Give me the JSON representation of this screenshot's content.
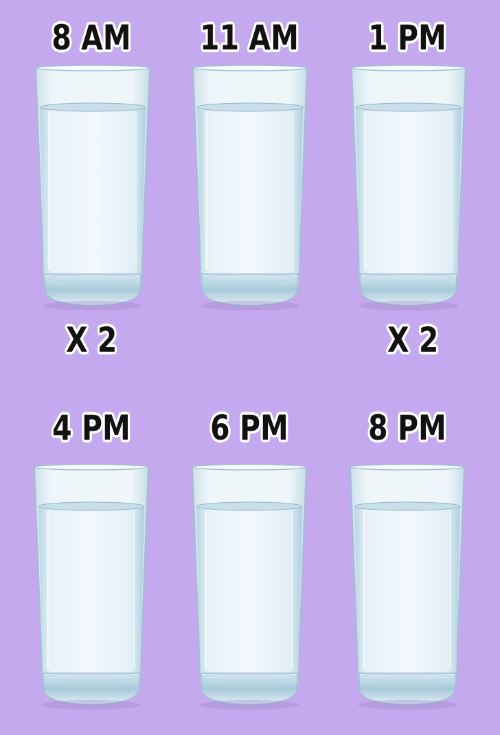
{
  "glasses": [
    {
      "time": "8 AM",
      "multiplier": "X 2"
    },
    {
      "time": "11 AM",
      "multiplier": ""
    },
    {
      "time": "1 PM",
      "multiplier": "X 2"
    },
    {
      "time": "4 PM",
      "multiplier": ""
    },
    {
      "time": "6 PM",
      "multiplier": ""
    },
    {
      "time": "8 PM",
      "multiplier": ""
    }
  ],
  "colors": {
    "background": "#c5a9ee",
    "label_text": "#111111",
    "label_outline": "#ffffff",
    "water": "#dfeef5",
    "glass_edge": "#8fb4c6"
  },
  "icons": {
    "glass": "water-glass-icon"
  }
}
